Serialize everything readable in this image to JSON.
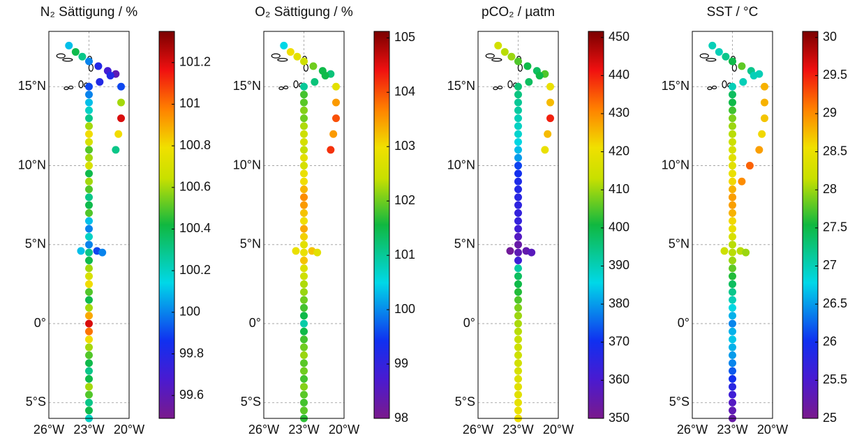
{
  "chart_data": [
    {
      "type": "scatter",
      "title": "N₂ Sättigung / %",
      "x": [
        -24.5,
        -24.0,
        -23.5,
        -23.0,
        -22.3,
        -21.6,
        -21.0,
        -20.6,
        -20.6,
        -20.6,
        -20.8,
        -21.0,
        -21.4,
        -22.2,
        -23.0,
        -23,
        -23,
        -23,
        -23,
        -23,
        -23,
        -23,
        -23,
        -23,
        -23,
        -23,
        -23,
        -23,
        -23,
        -23,
        -23,
        -23,
        -23,
        -23,
        -23,
        -23,
        -23,
        -23,
        -23,
        -23,
        -23,
        -23,
        -23,
        -23,
        -23,
        -23,
        -23,
        -23,
        -23,
        -23,
        -23,
        -23,
        -23,
        -23,
        -23,
        -23,
        -23,
        -23.6,
        -22.4,
        -22.0
      ],
      "y": [
        17.6,
        17.2,
        16.9,
        16.6,
        16.3,
        16.0,
        15.8,
        15.0,
        14.0,
        13.0,
        12.0,
        11.0,
        15.7,
        15.3,
        15.0,
        14.5,
        14,
        13.5,
        13,
        12.5,
        12,
        11.5,
        11,
        10.5,
        10,
        9.5,
        9,
        8.5,
        8,
        7.5,
        7,
        6.5,
        6,
        5.5,
        5,
        4.5,
        4,
        3.5,
        3,
        2.5,
        2,
        1.5,
        1,
        0.5,
        0,
        -0.5,
        -1,
        -1.5,
        -2,
        -2.5,
        -3,
        -3.5,
        -4,
        -4.5,
        -5,
        -5.5,
        -6,
        4.6,
        4.6,
        4.5
      ],
      "values": [
        100.1,
        100.4,
        100.3,
        100.0,
        99.8,
        99.7,
        99.6,
        99.9,
        100.6,
        101.2,
        100.8,
        100.3,
        99.8,
        99.8,
        99.9,
        100.0,
        100.1,
        100.2,
        100.3,
        100.6,
        100.8,
        100.7,
        100.5,
        100.6,
        100.7,
        100.4,
        100.6,
        100.5,
        100.3,
        100.4,
        100.5,
        100.1,
        100.0,
        100.2,
        100.0,
        100.3,
        100.4,
        100.6,
        100.7,
        100.8,
        100.5,
        100.4,
        100.6,
        100.9,
        101.2,
        101.0,
        100.8,
        100.6,
        100.5,
        100.4,
        100.3,
        100.4,
        100.6,
        100.5,
        100.3,
        100.4,
        100.2,
        100.1,
        99.9,
        100.0
      ],
      "xlim": [
        -26,
        -20
      ],
      "ylim": [
        -6,
        18.5
      ],
      "xticks": [
        {
          "value": -26,
          "label": "26°W"
        },
        {
          "value": -23,
          "label": "23°W"
        },
        {
          "value": -20,
          "label": "20°W"
        }
      ],
      "yticks": [
        {
          "value": -5,
          "label": "5°S"
        },
        {
          "value": 0,
          "label": "0°"
        },
        {
          "value": 5,
          "label": "5°N"
        },
        {
          "value": 10,
          "label": "10°N"
        },
        {
          "value": 15,
          "label": "15°N"
        }
      ],
      "clim": [
        99.49,
        101.35
      ],
      "cticks": [
        99.6,
        99.8,
        100,
        100.2,
        100.4,
        100.6,
        100.8,
        101,
        101.2
      ],
      "grid": true
    },
    {
      "type": "scatter",
      "title": "O₂ Sättigung / %",
      "x": [
        -24.5,
        -24.0,
        -23.5,
        -23.0,
        -22.3,
        -21.6,
        -21.0,
        -20.6,
        -20.6,
        -20.6,
        -20.8,
        -21.0,
        -21.4,
        -22.2,
        -23.0,
        -23,
        -23,
        -23,
        -23,
        -23,
        -23,
        -23,
        -23,
        -23,
        -23,
        -23,
        -23,
        -23,
        -23,
        -23,
        -23,
        -23,
        -23,
        -23,
        -23,
        -23,
        -23,
        -23,
        -23,
        -23,
        -23,
        -23,
        -23,
        -23,
        -23,
        -23,
        -23,
        -23,
        -23,
        -23,
        -23,
        -23,
        -23,
        -23,
        -23,
        -23,
        -23,
        -23.6,
        -22.4,
        -22.0
      ],
      "y": [
        17.6,
        17.2,
        16.9,
        16.6,
        16.3,
        16.0,
        15.8,
        15.0,
        14.0,
        13.0,
        12.0,
        11.0,
        15.7,
        15.3,
        15.0,
        14.5,
        14,
        13.5,
        13,
        12.5,
        12,
        11.5,
        11,
        10.5,
        10,
        9.5,
        9,
        8.5,
        8,
        7.5,
        7,
        6.5,
        6,
        5.5,
        5,
        4.5,
        4,
        3.5,
        3,
        2.5,
        2,
        1.5,
        1,
        0.5,
        0,
        -0.5,
        -1,
        -1.5,
        -2,
        -2.5,
        -3,
        -3.5,
        -4,
        -4.5,
        -5,
        -5.5,
        -6,
        4.6,
        4.6,
        4.5
      ],
      "values": [
        100.5,
        103.0,
        102.8,
        102.5,
        102.0,
        101.5,
        101.2,
        102.8,
        103.5,
        104.0,
        103.5,
        104.2,
        101.5,
        101.2,
        101.0,
        101.8,
        101.9,
        102.1,
        102.0,
        102.3,
        102.5,
        102.6,
        102.4,
        102.8,
        102.6,
        102.9,
        103.0,
        103.3,
        103.6,
        103.5,
        103.2,
        103.0,
        103.4,
        103.1,
        102.8,
        102.9,
        103.2,
        102.7,
        102.5,
        102.3,
        102.2,
        102.0,
        101.8,
        101.5,
        100.9,
        101.5,
        101.8,
        102.0,
        102.2,
        101.9,
        102.0,
        101.8,
        102.1,
        101.9,
        101.8,
        101.9,
        101.7,
        102.9,
        103.2,
        102.8
      ],
      "xlim": [
        -26,
        -20
      ],
      "ylim": [
        -6,
        18.5
      ],
      "xticks": [
        {
          "value": -26,
          "label": "26°W"
        },
        {
          "value": -23,
          "label": "23°W"
        },
        {
          "value": -20,
          "label": "20°W"
        }
      ],
      "yticks": [
        {
          "value": -5,
          "label": "5°S"
        },
        {
          "value": 0,
          "label": "0°"
        },
        {
          "value": 5,
          "label": "5°N"
        },
        {
          "value": 10,
          "label": "10°N"
        },
        {
          "value": 15,
          "label": "15°N"
        }
      ],
      "clim": [
        98,
        105.12
      ],
      "cticks": [
        98,
        99,
        100,
        101,
        102,
        103,
        104,
        105
      ],
      "grid": true
    },
    {
      "type": "scatter",
      "title": "pCO₂ / µatm",
      "x": [
        -24.5,
        -24.0,
        -23.5,
        -23.0,
        -22.3,
        -21.6,
        -21.0,
        -20.6,
        -20.6,
        -20.6,
        -20.8,
        -21.0,
        -21.4,
        -22.2,
        -23.0,
        -23,
        -23,
        -23,
        -23,
        -23,
        -23,
        -23,
        -23,
        -23,
        -23,
        -23,
        -23,
        -23,
        -23,
        -23,
        -23,
        -23,
        -23,
        -23,
        -23,
        -23,
        -23,
        -23,
        -23,
        -23,
        -23,
        -23,
        -23,
        -23,
        -23,
        -23,
        -23,
        -23,
        -23,
        -23,
        -23,
        -23,
        -23,
        -23,
        -23,
        -23,
        -23,
        -23.6,
        -22.4,
        -22.0
      ],
      "y": [
        17.6,
        17.2,
        16.9,
        16.6,
        16.3,
        16.0,
        15.8,
        15.0,
        14.0,
        13.0,
        12.0,
        11.0,
        15.7,
        15.3,
        15.0,
        14.5,
        14,
        13.5,
        13,
        12.5,
        12,
        11.5,
        11,
        10.5,
        10,
        9.5,
        9,
        8.5,
        8,
        7.5,
        7,
        6.5,
        6,
        5.5,
        5,
        4.5,
        4,
        3.5,
        3,
        2.5,
        2,
        1.5,
        1,
        0.5,
        0,
        -0.5,
        -1,
        -1.5,
        -2,
        -2.5,
        -3,
        -3.5,
        -4,
        -4.5,
        -5,
        -5.5,
        -6,
        4.6,
        4.6,
        4.5
      ],
      "values": [
        415,
        412,
        410,
        405,
        400,
        398,
        405,
        420,
        425,
        440,
        425,
        420,
        400,
        398,
        396,
        395,
        393,
        392,
        390,
        389,
        388,
        386,
        383,
        380,
        372,
        370,
        368,
        367,
        366,
        365,
        364,
        364,
        362,
        358,
        354,
        356,
        362,
        392,
        398,
        400,
        402,
        405,
        408,
        410,
        411,
        412,
        413,
        414,
        414,
        415,
        416,
        417,
        418,
        418,
        419,
        420,
        421,
        352,
        355,
        357
      ],
      "xlim": [
        -26,
        -20
      ],
      "ylim": [
        -6,
        18.5
      ],
      "xticks": [
        {
          "value": -26,
          "label": "26°W"
        },
        {
          "value": -23,
          "label": "23°W"
        },
        {
          "value": -20,
          "label": "20°W"
        }
      ],
      "yticks": [
        {
          "value": -5,
          "label": "5°S"
        },
        {
          "value": 0,
          "label": "0°"
        },
        {
          "value": 5,
          "label": "5°N"
        },
        {
          "value": 10,
          "label": "10°N"
        },
        {
          "value": 15,
          "label": "15°N"
        }
      ],
      "clim": [
        350,
        451.6
      ],
      "cticks": [
        350,
        360,
        370,
        380,
        390,
        400,
        410,
        420,
        430,
        440,
        450
      ],
      "grid": true
    },
    {
      "type": "scatter",
      "title": "SST / °C",
      "x": [
        -24.5,
        -24.0,
        -23.5,
        -23.0,
        -22.3,
        -21.6,
        -21.0,
        -20.6,
        -20.6,
        -20.6,
        -20.8,
        -21.0,
        -21.4,
        -22.2,
        -23.0,
        -23,
        -23,
        -23,
        -23,
        -23,
        -23,
        -23,
        -23,
        -23,
        -23,
        -23,
        -23,
        -23,
        -23,
        -23,
        -23,
        -23,
        -23,
        -23,
        -23,
        -23,
        -23,
        -23,
        -23,
        -23,
        -23,
        -23,
        -23,
        -23,
        -23,
        -23,
        -23,
        -23,
        -23,
        -23,
        -23,
        -23,
        -23,
        -23,
        -23,
        -23,
        -23,
        -23.6,
        -22.4,
        -22.0,
        -21.7,
        -22.3,
        -23.0
      ],
      "y": [
        17.6,
        17.2,
        16.9,
        16.6,
        16.3,
        16.0,
        15.8,
        15.0,
        14.0,
        13.0,
        12.0,
        11.0,
        15.7,
        15.3,
        15.0,
        14.5,
        14,
        13.5,
        13,
        12.5,
        12,
        11.5,
        11,
        10.5,
        10,
        9.5,
        9,
        8.5,
        8,
        7.5,
        7,
        6.5,
        6,
        5.5,
        5,
        4.5,
        4,
        3.5,
        3,
        2.5,
        2,
        1.5,
        1,
        0.5,
        0,
        -0.5,
        -1,
        -1.5,
        -2,
        -2.5,
        -3,
        -3.5,
        -4,
        -4.5,
        -5,
        -5.5,
        -6,
        4.6,
        4.6,
        4.5,
        10,
        9,
        8
      ],
      "values": [
        27.0,
        27.0,
        27.2,
        27.5,
        27.8,
        27.2,
        27.0,
        28.8,
        28.8,
        28.7,
        28.6,
        28.9,
        27.0,
        27.0,
        27.0,
        27.4,
        27.5,
        27.7,
        27.9,
        28.0,
        28.1,
        28.2,
        28.3,
        28.4,
        28.4,
        28.5,
        28.6,
        28.8,
        29.0,
        28.9,
        28.8,
        28.6,
        28.5,
        28.3,
        28.1,
        28.1,
        28.0,
        27.8,
        27.6,
        27.4,
        27.2,
        27.0,
        26.8,
        26.6,
        26.4,
        26.6,
        26.7,
        26.6,
        26.5,
        26.4,
        26.2,
        26.0,
        25.8,
        25.6,
        25.4,
        25.3,
        25.2,
        28.2,
        28.1,
        28.0,
        29.2,
        29.0,
        28.9
      ],
      "xlim": [
        -26,
        -20
      ],
      "ylim": [
        -6,
        18.5
      ],
      "xticks": [
        {
          "value": -26,
          "label": "26°W"
        },
        {
          "value": -23,
          "label": "23°W"
        },
        {
          "value": -20,
          "label": "20°W"
        }
      ],
      "yticks": [
        {
          "value": -5,
          "label": "5°S"
        },
        {
          "value": 0,
          "label": "0°"
        },
        {
          "value": 5,
          "label": "5°N"
        },
        {
          "value": 10,
          "label": "10°N"
        },
        {
          "value": 15,
          "label": "15°N"
        }
      ],
      "clim": [
        25,
        30.08
      ],
      "cticks": [
        25,
        25.5,
        26,
        26.5,
        27,
        27.5,
        28,
        28.5,
        29,
        29.5,
        30
      ],
      "grid": true
    }
  ]
}
